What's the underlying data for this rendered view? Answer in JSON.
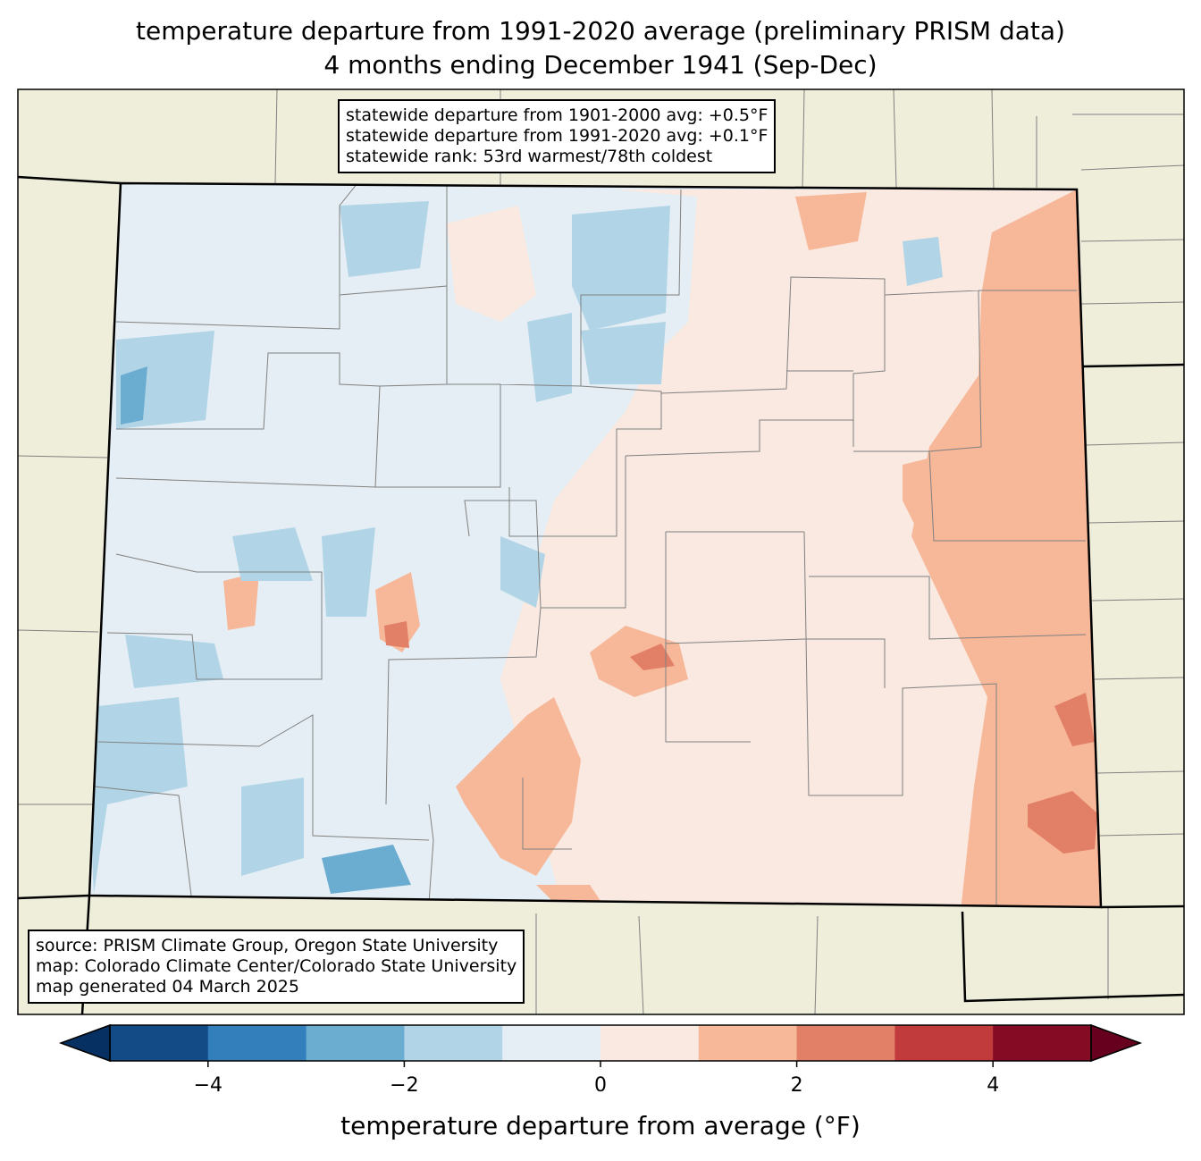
{
  "title": {
    "line1": "temperature departure from 1991-2020 average (preliminary PRISM data)",
    "line2": "4 months ending December 1941 (Sep-Dec)"
  },
  "stats_box": {
    "line1": "statewide departure from 1901-2000 avg: +0.5°F",
    "line2": "statewide departure from 1991-2020 avg: +0.1°F",
    "line3": "statewide rank: 53rd warmest/78th coldest"
  },
  "source_box": {
    "line1": "source: PRISM Climate Group, Oregon State University",
    "line2": "map: Colorado Climate Center/Colorado State University",
    "line3": "map generated 04 March 2025"
  },
  "colorbar": {
    "label": "temperature departure from average (°F)",
    "range": [
      -5,
      5
    ],
    "bin_colors": [
      "#134b87",
      "#327fbb",
      "#6bacd1",
      "#b1d5e7",
      "#e5eef4",
      "#f9e9e0",
      "#f7b799",
      "#e27f67",
      "#c13b3c",
      "#850b24"
    ],
    "under_color": "#053061",
    "over_color": "#67001f",
    "ticks": [
      {
        "value": -4,
        "label": "−4"
      },
      {
        "value": -2,
        "label": "−2"
      },
      {
        "value": 0,
        "label": "0"
      },
      {
        "value": 2,
        "label": "2"
      },
      {
        "value": 4,
        "label": "4"
      }
    ]
  },
  "map_colors": {
    "land": "#efeedb",
    "state_border": "#000000",
    "county_border": "#808080"
  }
}
